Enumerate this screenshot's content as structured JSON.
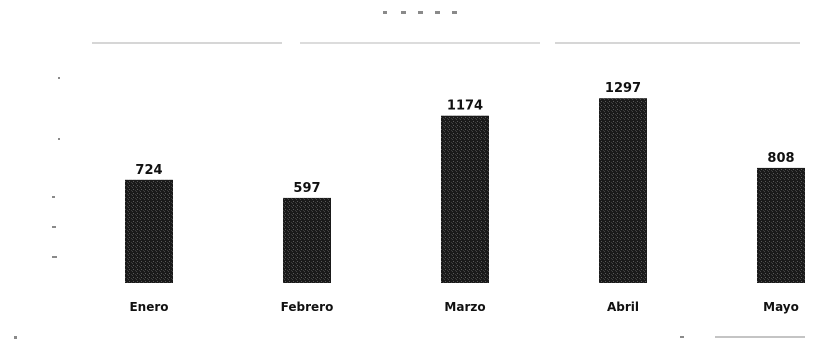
{
  "chart_data": {
    "type": "bar",
    "title": "",
    "subtitle": "",
    "xlabel": "",
    "ylabel": "",
    "categories": [
      "Enero",
      "Febrero",
      "Marzo",
      "Abril",
      "Mayo"
    ],
    "values": [
      724,
      597,
      1174,
      1297,
      808
    ],
    "value_labels": [
      "724",
      "597",
      "1174",
      "1297",
      "808"
    ],
    "ylim": [
      0,
      1400
    ],
    "grid": false,
    "legend": "none",
    "bar_color": "#1a1a1a"
  }
}
